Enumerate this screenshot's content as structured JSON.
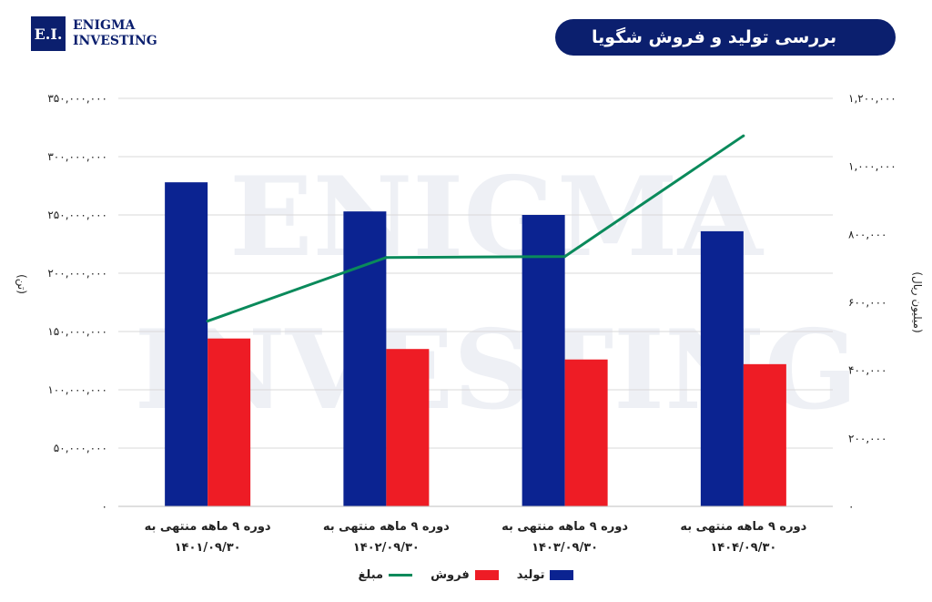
{
  "logo": {
    "initials": "E.I.",
    "line1": "ENIGMA",
    "line2": "INVESTING"
  },
  "header": {
    "title": "بررسی تولید و فروش شگویا"
  },
  "watermark": {
    "line1": "ENIGMA",
    "line2": "INVESTING"
  },
  "colors": {
    "production": "#0b2391",
    "sales": "#ee1c25",
    "amount": "#0a8a5b",
    "brand": "#0b1f6e"
  },
  "chart_data": {
    "type": "bar",
    "title": "بررسی تولید و فروش شگویا",
    "categories": [
      [
        "دوره ۹ ماهه منتهی به",
        "۱۴۰۱/۰۹/۳۰"
      ],
      [
        "دوره ۹ ماهه منتهی به",
        "۱۴۰۲/۰۹/۳۰"
      ],
      [
        "دوره ۹ ماهه منتهی به",
        "۱۴۰۳/۰۹/۳۰"
      ],
      [
        "دوره ۹ ماهه منتهی به",
        "۱۴۰۴/۰۹/۳۰"
      ]
    ],
    "series": [
      {
        "name": "تولید",
        "type": "bar",
        "axis": "left",
        "values": [
          278000000,
          253000000,
          250000000,
          236000000
        ]
      },
      {
        "name": "فروش",
        "type": "bar",
        "axis": "left",
        "values": [
          144000000,
          135000000,
          126000000,
          122000000
        ]
      },
      {
        "name": "مبلغ",
        "type": "line",
        "axis": "right",
        "values": [
          545000,
          732000,
          735000,
          1090000
        ]
      }
    ],
    "left_axis": {
      "label": "(تن)",
      "min": 0,
      "max": 350000000,
      "ticks": [
        "۰",
        "۵۰,۰۰۰,۰۰۰",
        "۱۰۰,۰۰۰,۰۰۰",
        "۱۵۰,۰۰۰,۰۰۰",
        "۲۰۰,۰۰۰,۰۰۰",
        "۲۵۰,۰۰۰,۰۰۰",
        "۳۰۰,۰۰۰,۰۰۰",
        "۳۵۰,۰۰۰,۰۰۰"
      ]
    },
    "right_axis": {
      "label": "(میلیون ریال)",
      "min": 0,
      "max": 1200000,
      "ticks": [
        "۰",
        "۲۰۰,۰۰۰",
        "۴۰۰,۰۰۰",
        "۶۰۰,۰۰۰",
        "۸۰۰,۰۰۰",
        "۱,۰۰۰,۰۰۰",
        "۱,۲۰۰,۰۰۰"
      ]
    },
    "grid": true,
    "legend_position": "bottom"
  }
}
